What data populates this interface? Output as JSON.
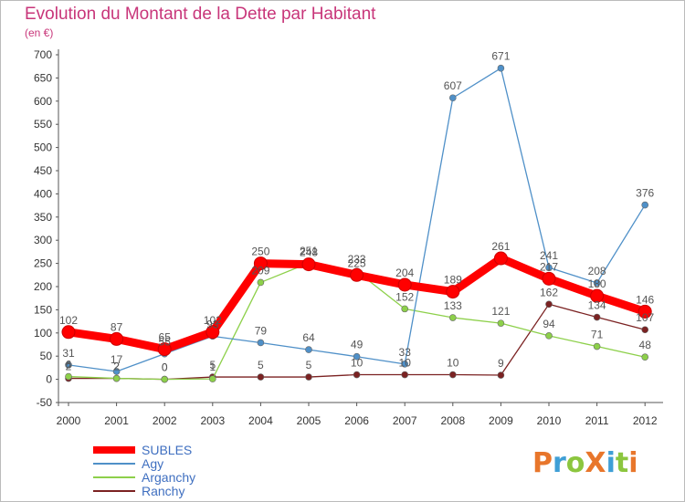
{
  "header": {
    "title": "Evolution du Montant de la Dette par Habitant",
    "unit": "(en €)"
  },
  "logo": {
    "text": "ProXiti",
    "letter_colors": [
      "#e8762b",
      "#3f9fd6",
      "#8cc63f",
      "#e8762b",
      "#3f9fd6",
      "#8cc63f",
      "#e8762b"
    ]
  },
  "chart_data": {
    "type": "line",
    "title": "Evolution du Montant de la Dette par Habitant",
    "ylabel": "(en €)",
    "xlabel": "",
    "ylim": [
      -50,
      700
    ],
    "yticks": [
      -50,
      0,
      50,
      100,
      150,
      200,
      250,
      300,
      350,
      400,
      450,
      500,
      550,
      600,
      650,
      700
    ],
    "x": [
      "2000",
      "2001",
      "2002",
      "2003",
      "2004",
      "2005",
      "2006",
      "2007",
      "2008",
      "2009",
      "2010",
      "2011",
      "2012"
    ],
    "grid": false,
    "legend_position": "bottom-left",
    "series": [
      {
        "name": "SUBLES",
        "color": "#ff0000",
        "values": [
          102,
          87,
          65,
          102,
          250,
          248,
          225,
          204,
          189,
          261,
          217,
          180,
          146
        ]
      },
      {
        "name": "Agy",
        "color": "#4f90c8",
        "values": [
          31,
          17,
          55,
          93,
          79,
          64,
          49,
          33,
          607,
          671,
          241,
          208,
          376
        ]
      },
      {
        "name": "Arganchy",
        "color": "#8dd04a",
        "values": [
          6,
          2,
          0,
          1,
          209,
          251,
          233,
          152,
          133,
          121,
          94,
          71,
          48
        ]
      },
      {
        "name": "Ranchy",
        "color": "#7b2222",
        "values": [
          2,
          2,
          0,
          5,
          5,
          5,
          10,
          10,
          10,
          9,
          162,
          134,
          107
        ]
      }
    ]
  }
}
